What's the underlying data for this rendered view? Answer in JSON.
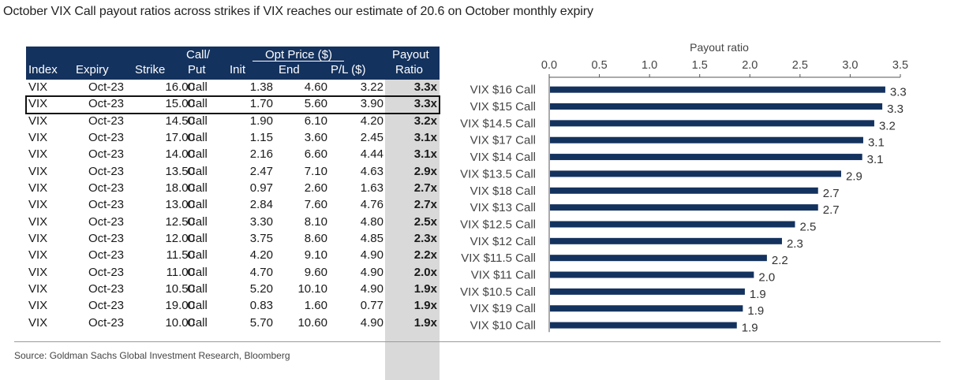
{
  "title": "October VIX Call payout ratios across strikes if VIX reaches our estimate of 20.6 on October monthly expiry",
  "source": "Source: Goldman Sachs Global Investment Research, Bloomberg",
  "table": {
    "headers": {
      "index": "Index",
      "expiry": "Expiry",
      "strike": "Strike",
      "callput_top": "Call/",
      "callput_bottom": "Put",
      "optprice": "Opt Price ($)",
      "init": "Init",
      "end": "End",
      "pl": "P/L ($)",
      "payout_top": "Payout",
      "payout_bottom": "Ratio"
    },
    "rows": [
      {
        "index": "VIX",
        "expiry": "Oct-23",
        "strike": "16.00",
        "type": "Call",
        "init": "1.38",
        "end": "4.60",
        "pl": "3.22",
        "payout": "3.3x"
      },
      {
        "index": "VIX",
        "expiry": "Oct-23",
        "strike": "15.00",
        "type": "Call",
        "init": "1.70",
        "end": "5.60",
        "pl": "3.90",
        "payout": "3.3x"
      },
      {
        "index": "VIX",
        "expiry": "Oct-23",
        "strike": "14.50",
        "type": "Call",
        "init": "1.90",
        "end": "6.10",
        "pl": "4.20",
        "payout": "3.2x"
      },
      {
        "index": "VIX",
        "expiry": "Oct-23",
        "strike": "17.00",
        "type": "Call",
        "init": "1.15",
        "end": "3.60",
        "pl": "2.45",
        "payout": "3.1x"
      },
      {
        "index": "VIX",
        "expiry": "Oct-23",
        "strike": "14.00",
        "type": "Call",
        "init": "2.16",
        "end": "6.60",
        "pl": "4.44",
        "payout": "3.1x"
      },
      {
        "index": "VIX",
        "expiry": "Oct-23",
        "strike": "13.50",
        "type": "Call",
        "init": "2.47",
        "end": "7.10",
        "pl": "4.63",
        "payout": "2.9x"
      },
      {
        "index": "VIX",
        "expiry": "Oct-23",
        "strike": "18.00",
        "type": "Call",
        "init": "0.97",
        "end": "2.60",
        "pl": "1.63",
        "payout": "2.7x"
      },
      {
        "index": "VIX",
        "expiry": "Oct-23",
        "strike": "13.00",
        "type": "Call",
        "init": "2.84",
        "end": "7.60",
        "pl": "4.76",
        "payout": "2.7x"
      },
      {
        "index": "VIX",
        "expiry": "Oct-23",
        "strike": "12.50",
        "type": "Call",
        "init": "3.30",
        "end": "8.10",
        "pl": "4.80",
        "payout": "2.5x"
      },
      {
        "index": "VIX",
        "expiry": "Oct-23",
        "strike": "12.00",
        "type": "Call",
        "init": "3.75",
        "end": "8.60",
        "pl": "4.85",
        "payout": "2.3x"
      },
      {
        "index": "VIX",
        "expiry": "Oct-23",
        "strike": "11.50",
        "type": "Call",
        "init": "4.20",
        "end": "9.10",
        "pl": "4.90",
        "payout": "2.2x"
      },
      {
        "index": "VIX",
        "expiry": "Oct-23",
        "strike": "11.00",
        "type": "Call",
        "init": "4.70",
        "end": "9.60",
        "pl": "4.90",
        "payout": "2.0x"
      },
      {
        "index": "VIX",
        "expiry": "Oct-23",
        "strike": "10.50",
        "type": "Call",
        "init": "5.20",
        "end": "10.10",
        "pl": "4.90",
        "payout": "1.9x"
      },
      {
        "index": "VIX",
        "expiry": "Oct-23",
        "strike": "19.00",
        "type": "Call",
        "init": "0.83",
        "end": "1.60",
        "pl": "0.77",
        "payout": "1.9x"
      },
      {
        "index": "VIX",
        "expiry": "Oct-23",
        "strike": "10.00",
        "type": "Call",
        "init": "5.70",
        "end": "10.60",
        "pl": "4.90",
        "payout": "1.9x"
      }
    ],
    "highlighted_row": 1
  },
  "chart_data": {
    "type": "bar",
    "orientation": "horizontal",
    "title": "Payout ratio",
    "axis_position": "top",
    "xlim": [
      0,
      3.5
    ],
    "ticks": [
      "0.0",
      "0.5",
      "1.0",
      "1.5",
      "2.0",
      "2.5",
      "3.0",
      "3.5"
    ],
    "categories": [
      "VIX $16 Call",
      "VIX $15 Call",
      "VIX $14.5 Call",
      "VIX $17 Call",
      "VIX $14 Call",
      "VIX $13.5 Call",
      "VIX $18 Call",
      "VIX $13 Call",
      "VIX $12.5 Call",
      "VIX $12 Call",
      "VIX $11.5 Call",
      "VIX $11 Call",
      "VIX $10.5 Call",
      "VIX $19 Call",
      "VIX $10 Call"
    ],
    "values": [
      3.35,
      3.32,
      3.24,
      3.13,
      3.12,
      2.91,
      2.68,
      2.68,
      2.45,
      2.32,
      2.17,
      2.04,
      1.95,
      1.93,
      1.87
    ],
    "data_labels": [
      "3.3",
      "3.3",
      "3.2",
      "3.1",
      "3.1",
      "2.9",
      "2.7",
      "2.7",
      "2.5",
      "2.3",
      "2.2",
      "2.0",
      "1.9",
      "1.9",
      "1.9"
    ],
    "bar_color": "#14325e",
    "grid": false
  },
  "colors": {
    "header_bg": "#14325e",
    "payout_bg": "#d9d9d9",
    "bar": "#14325e"
  }
}
